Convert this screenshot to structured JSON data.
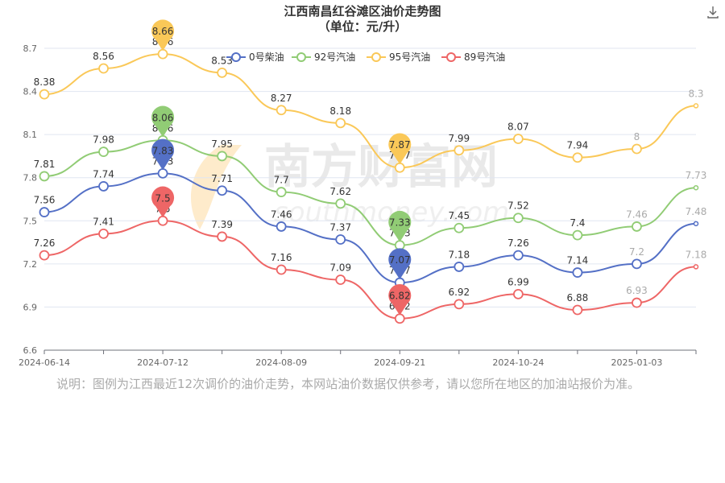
{
  "chart_data": {
    "type": "line",
    "title": "江西南昌红谷滩区油价走势图",
    "subtitle": "（单位：元/升）",
    "x": [
      "2024-06-14",
      "",
      "2024-07-12",
      "",
      "2024-08-09",
      "",
      "2024-09-21",
      "",
      "2024-10-24",
      "",
      "2025-01-03",
      ""
    ],
    "x_tick_labels": [
      "2024-06-14",
      "2024-07-12",
      "2024-08-09",
      "2024-09-21",
      "2024-10-24",
      "2025-01-03"
    ],
    "ylim": [
      6.6,
      8.7
    ],
    "y_tick_labels": [
      "6.6",
      "6.9",
      "7.2",
      "7.5",
      "7.8",
      "8.1",
      "8.4",
      "8.7"
    ],
    "grid": true,
    "legend_position": "top",
    "series": [
      {
        "name": "0号柴油",
        "color": "#5470c6",
        "values": [
          7.56,
          7.74,
          7.83,
          7.71,
          7.46,
          7.37,
          7.07,
          7.18,
          7.26,
          7.14,
          7.2,
          7.48
        ],
        "labels": [
          "7.56",
          "7.74",
          "7.83",
          "7.71",
          "7.46",
          "7.37",
          "7.07",
          "7.18",
          "7.26",
          "7.14",
          "7.2",
          "7.48"
        ]
      },
      {
        "name": "92号汽油",
        "color": "#91cc75",
        "values": [
          7.81,
          7.98,
          8.06,
          7.95,
          7.7,
          7.62,
          7.33,
          7.45,
          7.52,
          7.4,
          7.46,
          7.73
        ],
        "labels": [
          "7.81",
          "7.98",
          "8.06",
          "7.95",
          "7.7",
          "7.62",
          "7.33",
          "7.45",
          "7.52",
          "7.4",
          "7.46",
          "7.73"
        ]
      },
      {
        "name": "95号汽油",
        "color": "#fac858",
        "values": [
          8.38,
          8.56,
          8.66,
          8.53,
          8.27,
          8.18,
          7.87,
          7.99,
          8.07,
          7.94,
          8.0,
          8.3
        ],
        "labels": [
          "8.38",
          "8.56",
          "8.66",
          "8.53",
          "8.27",
          "8.18",
          "7.87",
          "7.99",
          "8.07",
          "7.94",
          "8",
          "8.3"
        ]
      },
      {
        "name": "89号汽油",
        "color": "#ee6666",
        "values": [
          7.26,
          7.41,
          7.5,
          7.39,
          7.16,
          7.09,
          6.82,
          6.92,
          6.99,
          6.88,
          6.93,
          7.18
        ],
        "labels": [
          "7.26",
          "7.41",
          "7.5",
          "7.39",
          "7.16",
          "7.09",
          "6.82",
          "6.92",
          "6.99",
          "6.88",
          "6.93",
          "7.18"
        ]
      }
    ],
    "markers": [
      {
        "series": 2,
        "index": 2,
        "label": "8.66"
      },
      {
        "series": 1,
        "index": 2,
        "label": "8.06"
      },
      {
        "series": 0,
        "index": 2,
        "label": "7.83"
      },
      {
        "series": 3,
        "index": 2,
        "label": "7.5"
      },
      {
        "series": 2,
        "index": 6,
        "label": "7.87"
      },
      {
        "series": 1,
        "index": 6,
        "label": "7.33"
      },
      {
        "series": 0,
        "index": 6,
        "label": "7.07"
      },
      {
        "series": 3,
        "index": 6,
        "label": "6.82"
      }
    ]
  },
  "watermark": {
    "main": "南方财富网",
    "sub": "southmoney.com"
  },
  "note": "说明：图例为江西最近12次调价的油价走势，本网站油价数据仅供参考，请以您所在地区的加油站报价为准。",
  "toolbar": {
    "download_icon": "download-icon"
  }
}
